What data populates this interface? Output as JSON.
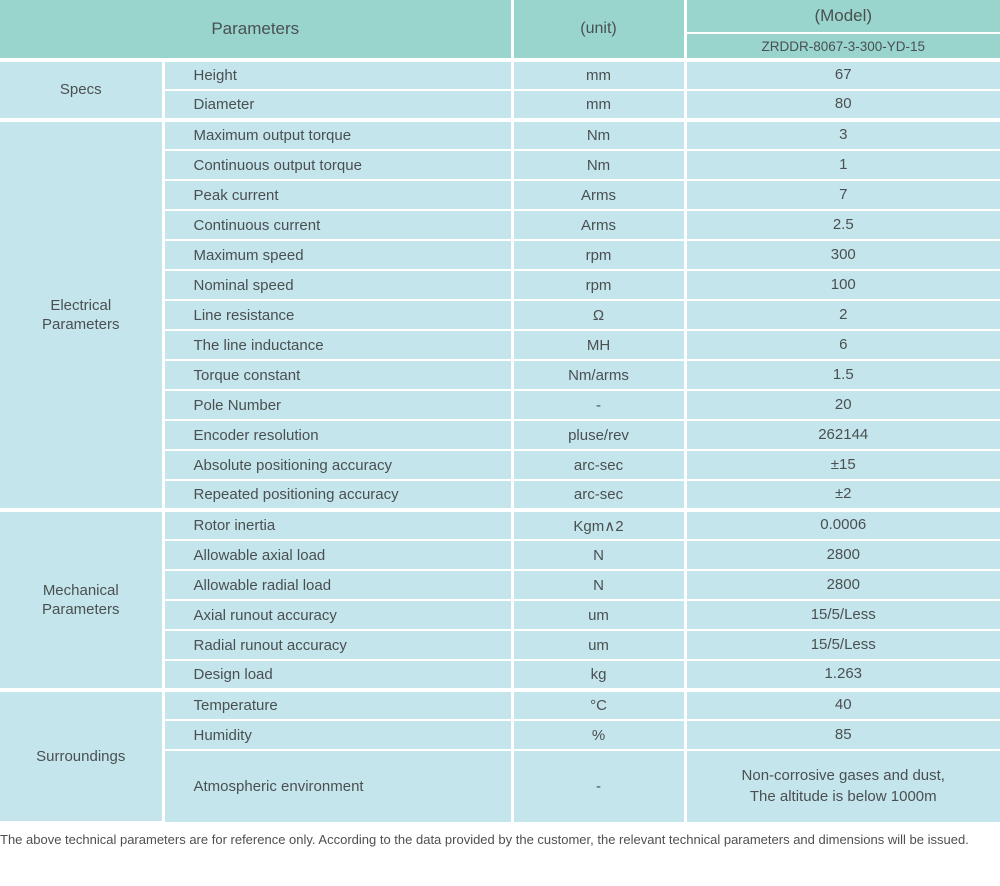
{
  "table": {
    "header": {
      "parameters_label": "Parameters",
      "unit_label": "(unit)",
      "model_label": "(Model)",
      "model_value": "ZRDDR-8067-3-300-YD-15"
    },
    "sections": [
      {
        "group": "Specs",
        "rows": [
          {
            "name": "Height",
            "unit": "mm",
            "value": "67"
          },
          {
            "name": "Diameter",
            "unit": "mm",
            "value": "80"
          }
        ]
      },
      {
        "group": "Electrical\nParameters",
        "rows": [
          {
            "name": "Maximum output torque",
            "unit": "Nm",
            "value": "3"
          },
          {
            "name": "Continuous output torque",
            "unit": "Nm",
            "value": "1"
          },
          {
            "name": "Peak current",
            "unit": "Arms",
            "value": "7"
          },
          {
            "name": "Continuous current",
            "unit": "Arms",
            "value": "2.5"
          },
          {
            "name": "Maximum speed",
            "unit": "rpm",
            "value": "300"
          },
          {
            "name": "Nominal speed",
            "unit": "rpm",
            "value": "100"
          },
          {
            "name": "Line resistance",
            "unit": "Ω",
            "value": "2"
          },
          {
            "name": "The line inductance",
            "unit": "MH",
            "value": "6"
          },
          {
            "name": "Torque constant",
            "unit": "Nm/arms",
            "value": "1.5"
          },
          {
            "name": "Pole Number",
            "unit": "-",
            "value": "20"
          },
          {
            "name": "Encoder resolution",
            "unit": "pluse/rev",
            "value": "262144"
          },
          {
            "name": "Absolute positioning accuracy",
            "unit": "arc-sec",
            "value": "±15"
          },
          {
            "name": "Repeated positioning accuracy",
            "unit": "arc-sec",
            "value": "±2"
          }
        ]
      },
      {
        "group": "Mechanical\nParameters",
        "rows": [
          {
            "name": "Rotor inertia",
            "unit": "Kgm∧2",
            "value": "0.0006"
          },
          {
            "name": "Allowable axial load",
            "unit": "N",
            "value": "2800"
          },
          {
            "name": "Allowable radial load",
            "unit": "N",
            "value": "2800"
          },
          {
            "name": "Axial runout accuracy",
            "unit": "um",
            "value": "15/5/Less"
          },
          {
            "name": "Radial runout accuracy",
            "unit": "um",
            "value": "15/5/Less"
          },
          {
            "name": "Design load",
            "unit": "kg",
            "value": "1.263"
          }
        ]
      },
      {
        "group": "Surroundings",
        "rows": [
          {
            "name": "Temperature",
            "unit": "°C",
            "value": "40"
          },
          {
            "name": "Humidity",
            "unit": "%",
            "value": "85"
          },
          {
            "name": "Atmospheric environment",
            "unit": "-",
            "value": "Non-corrosive gases and dust,\nThe altitude is below 1000m",
            "tall": true
          }
        ]
      }
    ],
    "footnote": "The above technical parameters are for reference only. According to the data provided by the customer, the relevant technical parameters and dimensions will be issued."
  },
  "colors": {
    "header_bg": "#99d5cd",
    "row_bg": "#c5e5ec",
    "grid": "#ffffff",
    "text": "#4a5051"
  }
}
